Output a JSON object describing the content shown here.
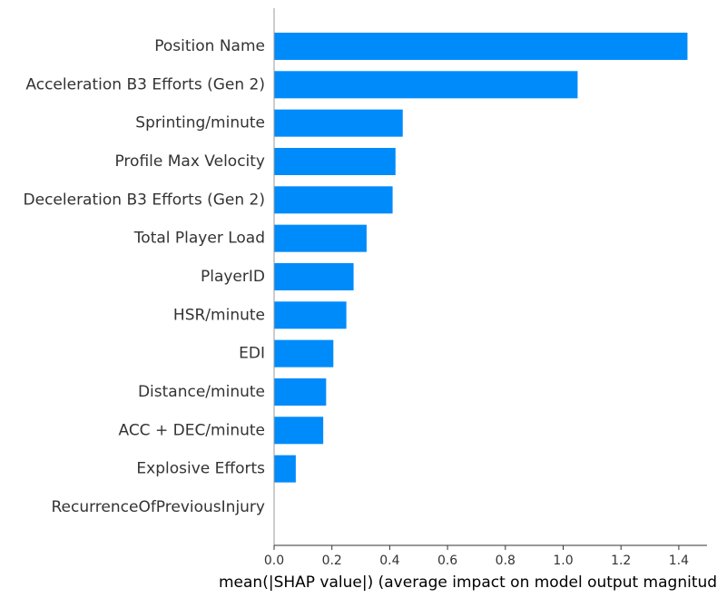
{
  "chart_data": {
    "type": "bar",
    "orientation": "horizontal",
    "categories": [
      "Position Name",
      "Acceleration B3 Efforts (Gen 2)",
      "Sprinting/minute",
      "Profile Max Velocity",
      "Deceleration B3 Efforts (Gen 2)",
      "Total Player Load",
      "PlayerID",
      "HSR/minute",
      "EDI",
      "Distance/minute",
      "ACC + DEC/minute",
      "Explosive Efforts",
      "RecurrenceOfPreviousInjury"
    ],
    "values": [
      1.43,
      1.05,
      0.445,
      0.42,
      0.41,
      0.32,
      0.275,
      0.25,
      0.205,
      0.18,
      0.17,
      0.075,
      0.0
    ],
    "title": "",
    "xlabel": "mean(|SHAP value|) (average impact on model output magnitude)",
    "ylabel": "",
    "xlim": [
      0,
      1.5
    ],
    "xticks": [
      "0.0",
      "0.2",
      "0.4",
      "0.6",
      "0.8",
      "1.0",
      "1.2",
      "1.4"
    ],
    "bar_color": "#008bfb",
    "axis_color": "#333333",
    "grid": false,
    "legend": "none"
  }
}
